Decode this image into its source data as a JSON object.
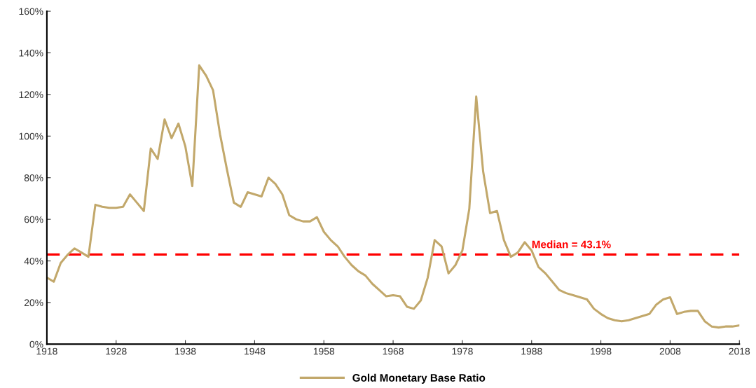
{
  "chart_data": {
    "type": "line",
    "x": [
      1918,
      1919,
      1920,
      1921,
      1922,
      1923,
      1924,
      1925,
      1926,
      1927,
      1928,
      1929,
      1930,
      1931,
      1932,
      1933,
      1934,
      1935,
      1936,
      1937,
      1938,
      1939,
      1940,
      1941,
      1942,
      1943,
      1944,
      1945,
      1946,
      1947,
      1948,
      1949,
      1950,
      1951,
      1952,
      1953,
      1954,
      1955,
      1956,
      1957,
      1958,
      1959,
      1960,
      1961,
      1962,
      1963,
      1964,
      1965,
      1966,
      1967,
      1968,
      1969,
      1970,
      1971,
      1972,
      1973,
      1974,
      1975,
      1976,
      1977,
      1978,
      1979,
      1980,
      1981,
      1982,
      1983,
      1984,
      1985,
      1986,
      1987,
      1988,
      1989,
      1990,
      1991,
      1992,
      1993,
      1994,
      1995,
      1996,
      1997,
      1998,
      1999,
      2000,
      2001,
      2002,
      2003,
      2004,
      2005,
      2006,
      2007,
      2008,
      2009,
      2010,
      2011,
      2012,
      2013,
      2014,
      2015,
      2016,
      2017,
      2018
    ],
    "series": [
      {
        "name": "Gold Monetary Base Ratio",
        "color": "#c2a86b",
        "values": [
          32,
          30,
          39,
          43,
          46,
          44,
          42,
          67,
          66,
          65.5,
          65.5,
          66,
          72,
          68,
          64,
          94,
          89,
          108,
          99,
          106,
          95,
          76,
          134,
          129,
          122,
          101,
          84,
          68,
          66,
          73,
          72,
          71,
          80,
          77,
          72,
          62,
          60,
          59,
          59,
          61,
          54,
          50,
          47,
          42,
          38,
          35,
          33,
          29,
          26,
          23,
          23.5,
          23,
          18,
          17,
          21,
          32,
          50,
          47,
          34,
          38,
          45,
          65,
          119,
          83,
          63,
          64,
          50,
          42,
          44,
          49,
          45,
          37,
          34,
          30,
          26,
          24.5,
          23.5,
          22.5,
          21.5,
          17,
          14.5,
          12.5,
          11.5,
          11,
          11.5,
          12.5,
          13.5,
          14.5,
          19,
          21.5,
          22.5,
          14.5,
          15.5,
          16,
          16,
          11,
          8.5,
          8,
          8.5,
          8.5,
          9
        ]
      }
    ],
    "xlim": [
      1918,
      2018
    ],
    "xticks": [
      1918,
      1928,
      1938,
      1948,
      1958,
      1968,
      1978,
      1988,
      1998,
      2008,
      2018
    ],
    "ylim": [
      0,
      160
    ],
    "yticks": [
      {
        "value": 0,
        "label": "0%"
      },
      {
        "value": 20,
        "label": "20%"
      },
      {
        "value": 40,
        "label": "40%"
      },
      {
        "value": 60,
        "label": "60%"
      },
      {
        "value": 80,
        "label": "80%"
      },
      {
        "value": 100,
        "label": "100%"
      },
      {
        "value": 120,
        "label": "120%"
      },
      {
        "value": 140,
        "label": "140%"
      },
      {
        "value": 160,
        "label": "160%"
      }
    ],
    "ref_lines": [
      {
        "axis": "y",
        "value": 43.1,
        "label": "Median = 43.1%",
        "color": "#ff0000",
        "line_style": "dashed"
      }
    ],
    "legend": "bottom",
    "grid": false,
    "marker": "none",
    "line_style": "solid"
  }
}
